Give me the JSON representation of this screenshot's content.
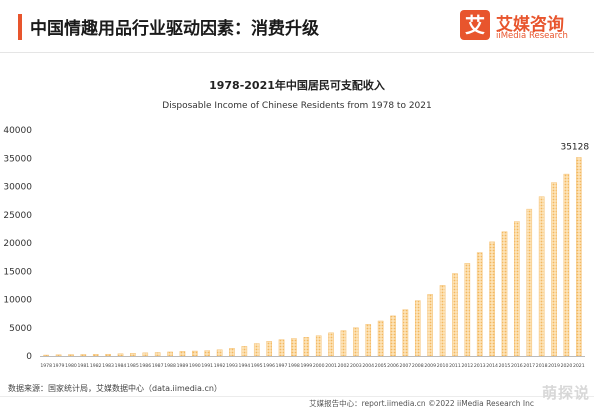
{
  "header": {
    "title": "中国情趣用品行业驱动因素：消费升级",
    "accent_color": "#e8552d"
  },
  "logo": {
    "glyph": "艾",
    "name_cn": "艾媒咨询",
    "name_en": "iiMedia Research"
  },
  "chart_data": {
    "type": "bar",
    "title": "1978-2021年中国居民可支配收入",
    "subtitle": "Disposable Income of Chinese Residents from 1978 to 2021",
    "categories": [
      "1978",
      "1979",
      "1980",
      "1981",
      "1982",
      "1983",
      "1984",
      "1985",
      "1986",
      "1987",
      "1988",
      "1989",
      "1990",
      "1991",
      "1992",
      "1993",
      "1994",
      "1995",
      "1996",
      "1997",
      "1998",
      "1999",
      "2000",
      "2001",
      "2002",
      "2003",
      "2004",
      "2005",
      "2006",
      "2007",
      "2008",
      "2009",
      "2010",
      "2011",
      "2012",
      "2013",
      "2014",
      "2015",
      "2016",
      "2017",
      "2018",
      "2019",
      "2020",
      "2021"
    ],
    "values": [
      171,
      220,
      259,
      270,
      298,
      323,
      390,
      480,
      560,
      620,
      720,
      820,
      880,
      950,
      1100,
      1350,
      1700,
      2200,
      2600,
      2900,
      3100,
      3300,
      3600,
      4100,
      4500,
      5000,
      5600,
      6200,
      7100,
      8200,
      9800,
      10900,
      12500,
      14600,
      16400,
      18300,
      20200,
      22000,
      23800,
      26000,
      28200,
      30700,
      32200,
      35128
    ],
    "data_labels": [
      {
        "category": "2021",
        "text": "35128"
      }
    ],
    "ylim": [
      0,
      40000
    ],
    "yticks": [
      "0",
      "5000",
      "10000",
      "15000",
      "20000",
      "25000",
      "30000",
      "35000",
      "40000"
    ],
    "bar_color": "#f3b860",
    "bar_pattern": "dotted",
    "grid": false,
    "legend": "none"
  },
  "footer": {
    "source": "数据来源：国家统计局，艾媒数据中心（data.iimedia.cn）",
    "copyright": "艾媒报告中心：report.iimedia.cn    ©2022   iiMedia Research  Inc",
    "watermark": "萌探说"
  }
}
